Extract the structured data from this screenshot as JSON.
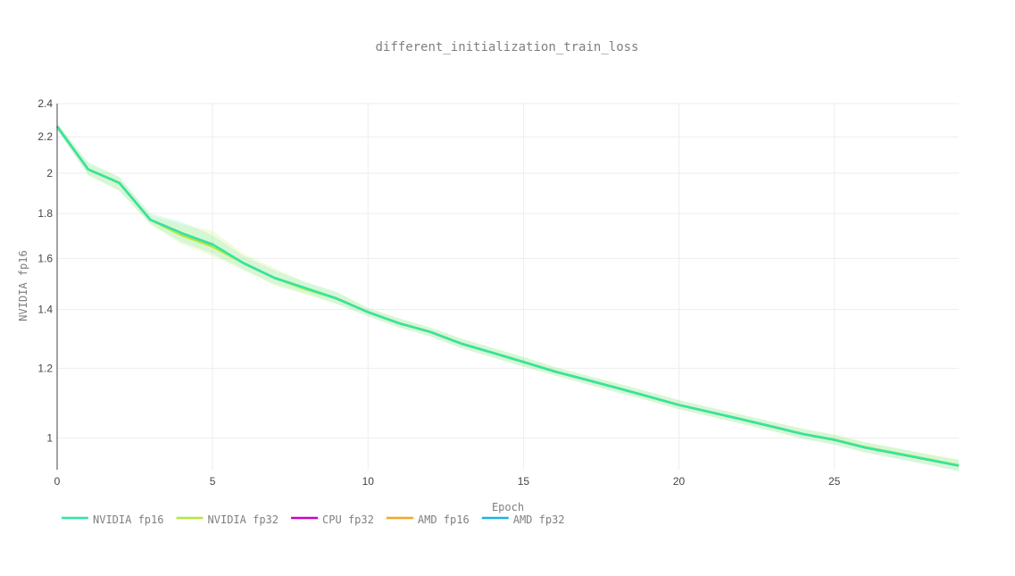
{
  "chart_data": {
    "type": "line",
    "title": "different_initialization_train_loss",
    "xlabel": "Epoch",
    "ylabel": "NVIDIA fp16",
    "x_ticks": [
      "0",
      "5",
      "10",
      "15",
      "20",
      "25"
    ],
    "y_ticks": [
      "1",
      "1.2",
      "1.4",
      "1.6",
      "1.8",
      "2",
      "2.2",
      "2.4"
    ],
    "y_scale": "log",
    "xlim": [
      0,
      29
    ],
    "ylim": [
      0.92,
      2.4
    ],
    "grid": true,
    "legend_placement": "bottom-left",
    "x": [
      0,
      1,
      2,
      3,
      4,
      5,
      6,
      7,
      8,
      9,
      10,
      11,
      12,
      13,
      14,
      15,
      16,
      17,
      18,
      19,
      20,
      21,
      22,
      23,
      24,
      25,
      26,
      27,
      28,
      29
    ],
    "series": [
      {
        "name": "NVIDIA fp16",
        "color": "#2ee8a0",
        "values": [
          2.26,
          2.02,
          1.95,
          1.77,
          1.71,
          1.66,
          1.58,
          1.52,
          1.48,
          1.44,
          1.39,
          1.35,
          1.32,
          1.28,
          1.25,
          1.22,
          1.19,
          1.165,
          1.14,
          1.115,
          1.09,
          1.07,
          1.05,
          1.03,
          1.01,
          0.995,
          0.975,
          0.96,
          0.945,
          0.93
        ],
        "band_lower": [
          2.24,
          1.99,
          1.91,
          1.75,
          1.67,
          1.62,
          1.555,
          1.495,
          1.46,
          1.42,
          1.375,
          1.335,
          1.305,
          1.265,
          1.235,
          1.205,
          1.178,
          1.152,
          1.127,
          1.103,
          1.078,
          1.058,
          1.038,
          1.018,
          0.998,
          0.982,
          0.962,
          0.947,
          0.932,
          0.916
        ],
        "band_upper": [
          2.28,
          2.06,
          1.98,
          1.8,
          1.76,
          1.7,
          1.61,
          1.55,
          1.505,
          1.465,
          1.405,
          1.367,
          1.335,
          1.297,
          1.266,
          1.236,
          1.204,
          1.178,
          1.154,
          1.129,
          1.104,
          1.083,
          1.063,
          1.043,
          1.024,
          1.008,
          0.988,
          0.973,
          0.958,
          0.944
        ]
      },
      {
        "name": "NVIDIA fp32",
        "color": "#b5e840",
        "values": [
          2.26,
          2.02,
          1.95,
          1.77,
          1.7,
          1.65,
          1.58,
          1.52,
          1.475,
          1.44,
          1.39,
          1.35,
          1.32,
          1.28,
          1.25,
          1.22,
          1.19,
          1.165,
          1.14,
          1.115,
          1.09,
          1.07,
          1.05,
          1.03,
          1.01,
          0.996,
          0.976,
          0.961,
          0.946,
          0.931
        ],
        "band_lower": [
          2.24,
          1.99,
          1.91,
          1.75,
          1.66,
          1.61,
          1.55,
          1.49,
          1.455,
          1.42,
          1.375,
          1.335,
          1.305,
          1.265,
          1.235,
          1.205,
          1.178,
          1.152,
          1.127,
          1.103,
          1.078,
          1.058,
          1.038,
          1.018,
          0.998,
          0.983,
          0.963,
          0.948,
          0.933,
          0.917
        ],
        "band_upper": [
          2.28,
          2.05,
          1.98,
          1.79,
          1.75,
          1.72,
          1.62,
          1.56,
          1.5,
          1.465,
          1.405,
          1.367,
          1.335,
          1.297,
          1.266,
          1.236,
          1.204,
          1.178,
          1.154,
          1.129,
          1.104,
          1.083,
          1.063,
          1.043,
          1.024,
          1.009,
          0.989,
          0.974,
          0.959,
          0.945
        ]
      },
      {
        "name": "CPU fp32",
        "color": "#cc00cc",
        "values": [
          2.26,
          2.02,
          1.95,
          1.77,
          1.71,
          1.655,
          1.58,
          1.52,
          1.478,
          1.44,
          1.39,
          1.35,
          1.32,
          1.28,
          1.25,
          1.22,
          1.19,
          1.165,
          1.14,
          1.115,
          1.09,
          1.07,
          1.05,
          1.03,
          1.01,
          0.995,
          0.975,
          0.96,
          0.945,
          0.93
        ]
      },
      {
        "name": "AMD fp16",
        "color": "#f5a623",
        "values": [
          2.26,
          2.02,
          1.95,
          1.77,
          1.705,
          1.65,
          1.58,
          1.52,
          1.478,
          1.44,
          1.39,
          1.35,
          1.32,
          1.28,
          1.25,
          1.22,
          1.19,
          1.165,
          1.14,
          1.115,
          1.09,
          1.07,
          1.05,
          1.03,
          1.01,
          0.995,
          0.975,
          0.96,
          0.945,
          0.93
        ]
      },
      {
        "name": "AMD fp32",
        "color": "#1ab2e8",
        "values": [
          2.26,
          2.02,
          1.95,
          1.77,
          1.71,
          1.66,
          1.58,
          1.52,
          1.48,
          1.44,
          1.39,
          1.35,
          1.32,
          1.28,
          1.25,
          1.22,
          1.19,
          1.165,
          1.14,
          1.115,
          1.09,
          1.07,
          1.05,
          1.03,
          1.01,
          0.995,
          0.975,
          0.96,
          0.945,
          0.93
        ]
      }
    ],
    "draw_order": [
      3,
      4,
      2,
      1,
      0
    ]
  }
}
